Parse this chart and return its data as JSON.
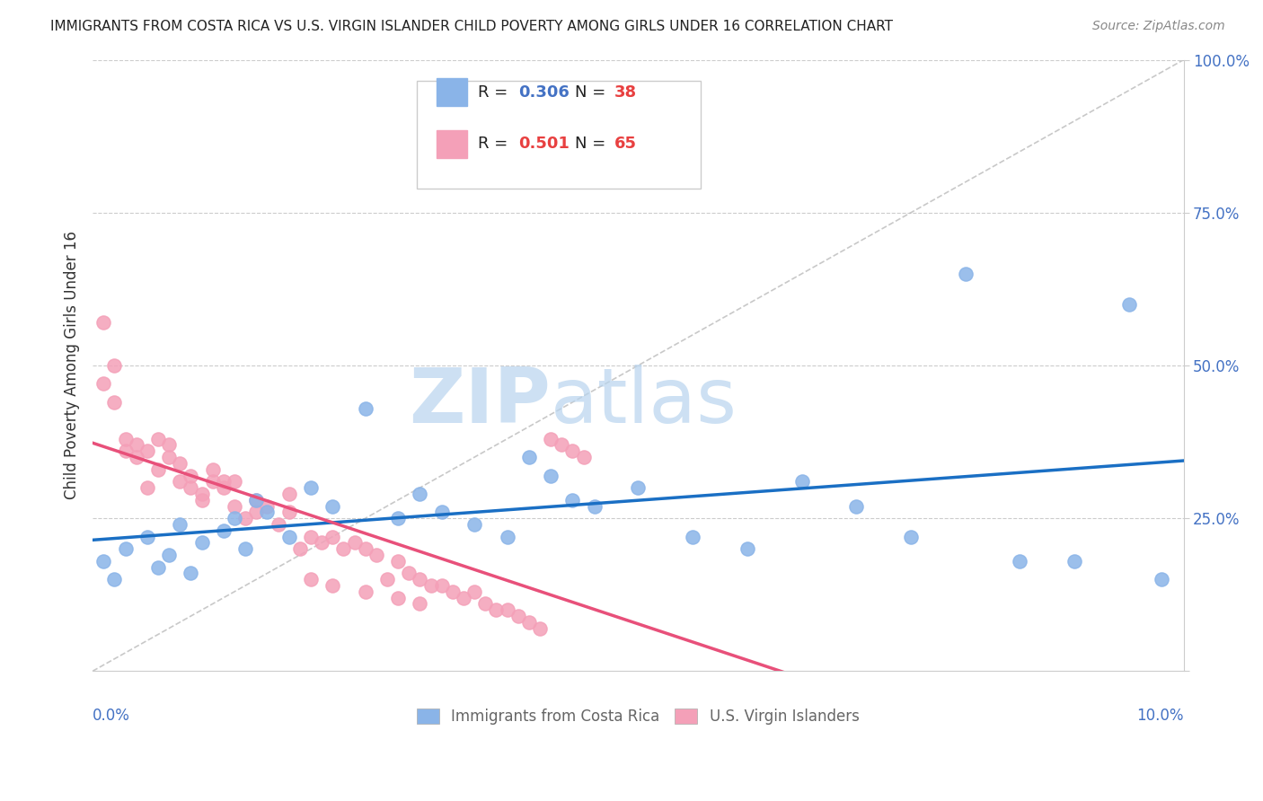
{
  "title": "IMMIGRANTS FROM COSTA RICA VS U.S. VIRGIN ISLANDER CHILD POVERTY AMONG GIRLS UNDER 16 CORRELATION CHART",
  "source": "Source: ZipAtlas.com",
  "ylabel": "Child Poverty Among Girls Under 16",
  "series1_label": "Immigrants from Costa Rica",
  "series2_label": "U.S. Virgin Islanders",
  "R1": 0.306,
  "N1": 38,
  "R2": 0.501,
  "N2": 65,
  "color1": "#8ab4e8",
  "color2": "#f4a0b8",
  "line1_color": "#1a6fc4",
  "line2_color": "#e8507a",
  "watermark_zip": "ZIP",
  "watermark_atlas": "atlas",
  "xmin": 0.0,
  "xmax": 0.1,
  "ymin": 0.0,
  "ymax": 1.0,
  "series1_x": [
    0.001,
    0.002,
    0.003,
    0.005,
    0.006,
    0.007,
    0.008,
    0.009,
    0.01,
    0.012,
    0.013,
    0.014,
    0.015,
    0.016,
    0.018,
    0.02,
    0.022,
    0.025,
    0.028,
    0.03,
    0.032,
    0.035,
    0.038,
    0.04,
    0.042,
    0.044,
    0.046,
    0.05,
    0.055,
    0.06,
    0.065,
    0.07,
    0.075,
    0.08,
    0.085,
    0.09,
    0.095,
    0.098
  ],
  "series1_y": [
    0.18,
    0.15,
    0.2,
    0.22,
    0.17,
    0.19,
    0.24,
    0.16,
    0.21,
    0.23,
    0.25,
    0.2,
    0.28,
    0.26,
    0.22,
    0.3,
    0.27,
    0.43,
    0.25,
    0.29,
    0.26,
    0.24,
    0.22,
    0.35,
    0.32,
    0.28,
    0.27,
    0.3,
    0.22,
    0.2,
    0.31,
    0.27,
    0.22,
    0.65,
    0.18,
    0.18,
    0.6,
    0.15
  ],
  "series2_x": [
    0.001,
    0.001,
    0.002,
    0.002,
    0.003,
    0.003,
    0.004,
    0.004,
    0.005,
    0.005,
    0.006,
    0.006,
    0.007,
    0.007,
    0.008,
    0.008,
    0.009,
    0.009,
    0.01,
    0.01,
    0.011,
    0.011,
    0.012,
    0.012,
    0.013,
    0.013,
    0.014,
    0.015,
    0.015,
    0.016,
    0.017,
    0.018,
    0.018,
    0.019,
    0.02,
    0.021,
    0.022,
    0.023,
    0.024,
    0.025,
    0.026,
    0.027,
    0.028,
    0.029,
    0.03,
    0.031,
    0.032,
    0.033,
    0.034,
    0.035,
    0.036,
    0.037,
    0.038,
    0.039,
    0.04,
    0.041,
    0.042,
    0.043,
    0.044,
    0.045,
    0.02,
    0.022,
    0.025,
    0.028,
    0.03
  ],
  "series2_y": [
    0.57,
    0.47,
    0.5,
    0.44,
    0.36,
    0.38,
    0.37,
    0.35,
    0.36,
    0.3,
    0.38,
    0.33,
    0.37,
    0.35,
    0.34,
    0.31,
    0.32,
    0.3,
    0.29,
    0.28,
    0.33,
    0.31,
    0.31,
    0.3,
    0.27,
    0.31,
    0.25,
    0.26,
    0.28,
    0.27,
    0.24,
    0.26,
    0.29,
    0.2,
    0.22,
    0.21,
    0.22,
    0.2,
    0.21,
    0.2,
    0.19,
    0.15,
    0.18,
    0.16,
    0.15,
    0.14,
    0.14,
    0.13,
    0.12,
    0.13,
    0.11,
    0.1,
    0.1,
    0.09,
    0.08,
    0.07,
    0.38,
    0.37,
    0.36,
    0.35,
    0.15,
    0.14,
    0.13,
    0.12,
    0.11
  ]
}
